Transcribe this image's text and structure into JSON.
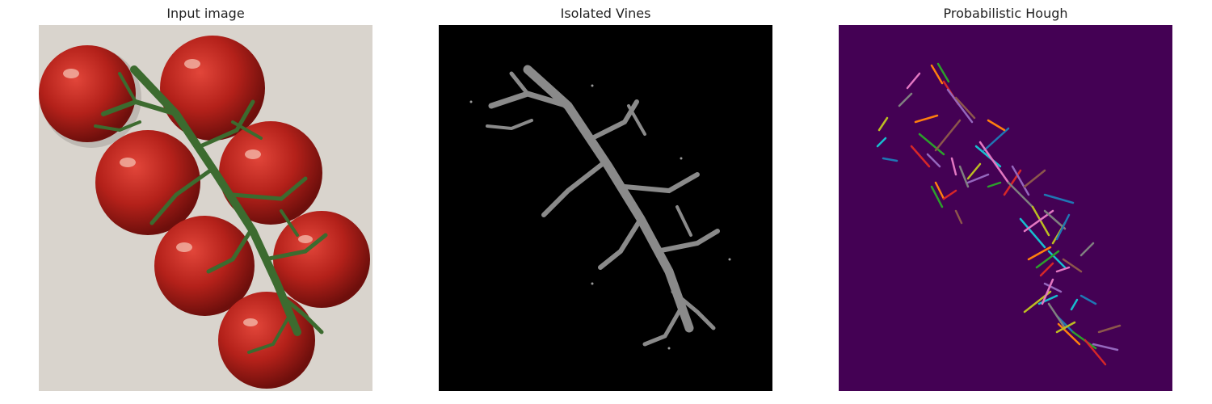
{
  "panels": [
    {
      "title": "Input image"
    },
    {
      "title": "Isolated Vines"
    },
    {
      "title": "Probabilistic Hough"
    }
  ],
  "colors": {
    "hough_background": "#440154",
    "segment_palette": [
      "#ff7f0e",
      "#2ca02c",
      "#d62728",
      "#9467bd",
      "#8c564b",
      "#e377c2",
      "#7f7f7f",
      "#bcbd22",
      "#17becf",
      "#1f77b4"
    ]
  }
}
